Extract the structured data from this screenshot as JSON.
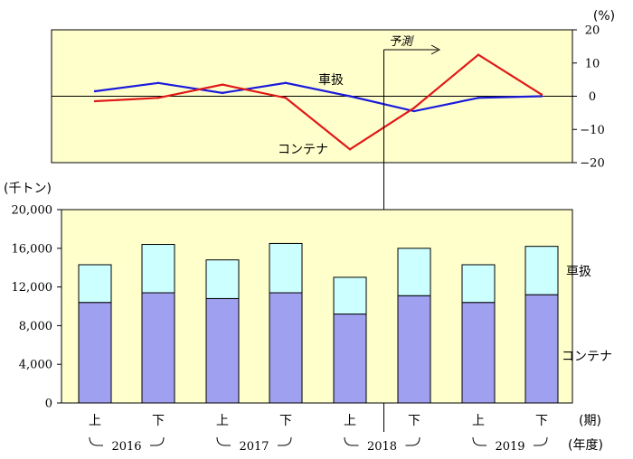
{
  "top_chart": {
    "unit": "(%)",
    "forecast_label": "予測",
    "ticks": [
      "20",
      "10",
      "0",
      "−10",
      "−20"
    ],
    "series_labels": {
      "sharyo": "車扱",
      "container": "コンテナ"
    }
  },
  "bottom_chart": {
    "unit": "(千トン)",
    "ticks": [
      "20,000",
      "16,000",
      "12,000",
      "8,000",
      "4,000",
      "0"
    ],
    "series_labels": {
      "sharyo": "車扱",
      "container": "コンテナ"
    },
    "period_unit": "(期)",
    "year_unit": "(年度)",
    "periods": [
      "上",
      "下",
      "上",
      "下",
      "上",
      "下",
      "上",
      "下"
    ],
    "years": [
      "2016",
      "2017",
      "2018",
      "2019"
    ]
  },
  "chart_data": [
    {
      "type": "line",
      "x": [
        "2016上",
        "2016下",
        "2017上",
        "2017下",
        "2018上",
        "2018下",
        "2019上",
        "2019下"
      ],
      "ylabel": "(%)",
      "ylim": [
        -20,
        20
      ],
      "forecast_from": "2018下",
      "series": [
        {
          "name": "車扱",
          "color": "#1a1adc",
          "values": [
            1.5,
            4,
            1,
            4,
            0,
            -4.5,
            -0.5,
            0
          ]
        },
        {
          "name": "コンテナ",
          "color": "#e01818",
          "values": [
            -1.5,
            -0.5,
            3.5,
            -0.5,
            -16,
            -3.5,
            12.5,
            0.5
          ]
        }
      ]
    },
    {
      "type": "bar",
      "stacked": true,
      "categories": [
        "2016上",
        "2016下",
        "2017上",
        "2017下",
        "2018上",
        "2018下",
        "2019上",
        "2019下"
      ],
      "ylabel": "(千トン)",
      "ylim": [
        0,
        20000
      ],
      "series": [
        {
          "name": "コンテナ",
          "color": "#a0a0f0",
          "values": [
            10400,
            11400,
            10800,
            11400,
            9200,
            11100,
            10400,
            11200
          ]
        },
        {
          "name": "車扱",
          "color": "#ccffff",
          "values": [
            3900,
            5000,
            4000,
            5100,
            3800,
            4900,
            3900,
            5000
          ]
        }
      ]
    }
  ]
}
